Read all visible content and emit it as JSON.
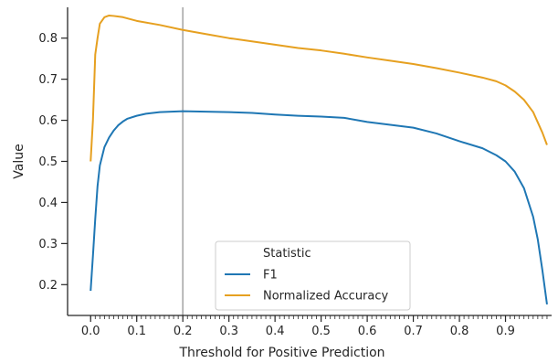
{
  "chart_data": {
    "type": "line",
    "title": "",
    "xlabel": "Threshold for Positive Prediction",
    "ylabel": "Value",
    "xlim": [
      -0.05,
      1.0
    ],
    "ylim": [
      0.125,
      0.875
    ],
    "xticks": [
      0.0,
      0.1,
      0.2,
      0.3,
      0.4,
      0.5,
      0.6,
      0.7,
      0.8,
      0.9
    ],
    "xtick_labels": [
      "0.0",
      "0.1",
      "0.2",
      "0.3",
      "0.4",
      "0.5",
      "0.6",
      "0.7",
      "0.8",
      "0.9"
    ],
    "minor_xtick_step": 0.01,
    "yticks": [
      0.2,
      0.3,
      0.4,
      0.5,
      0.6,
      0.7,
      0.8
    ],
    "ytick_labels": [
      "0.2",
      "0.3",
      "0.4",
      "0.5",
      "0.6",
      "0.7",
      "0.8"
    ],
    "vline": 0.2,
    "grid": false,
    "legend": {
      "title": "Statistic",
      "position": "lower-center"
    },
    "series": [
      {
        "name": "F1",
        "color": "#1f77b4",
        "points": [
          [
            0.0,
            0.185
          ],
          [
            0.005,
            0.27
          ],
          [
            0.01,
            0.36
          ],
          [
            0.015,
            0.44
          ],
          [
            0.02,
            0.49
          ],
          [
            0.03,
            0.535
          ],
          [
            0.04,
            0.558
          ],
          [
            0.05,
            0.575
          ],
          [
            0.06,
            0.588
          ],
          [
            0.07,
            0.597
          ],
          [
            0.08,
            0.604
          ],
          [
            0.1,
            0.611
          ],
          [
            0.12,
            0.616
          ],
          [
            0.15,
            0.62
          ],
          [
            0.2,
            0.622
          ],
          [
            0.25,
            0.621
          ],
          [
            0.3,
            0.62
          ],
          [
            0.35,
            0.618
          ],
          [
            0.4,
            0.614
          ],
          [
            0.45,
            0.611
          ],
          [
            0.5,
            0.609
          ],
          [
            0.55,
            0.606
          ],
          [
            0.6,
            0.596
          ],
          [
            0.65,
            0.589
          ],
          [
            0.7,
            0.582
          ],
          [
            0.75,
            0.568
          ],
          [
            0.8,
            0.549
          ],
          [
            0.85,
            0.532
          ],
          [
            0.88,
            0.515
          ],
          [
            0.9,
            0.5
          ],
          [
            0.92,
            0.475
          ],
          [
            0.94,
            0.435
          ],
          [
            0.96,
            0.365
          ],
          [
            0.97,
            0.31
          ],
          [
            0.98,
            0.235
          ],
          [
            0.99,
            0.152
          ]
        ]
      },
      {
        "name": "Normalized Accuracy",
        "color": "#e6a020",
        "points": [
          [
            0.0,
            0.5
          ],
          [
            0.005,
            0.6
          ],
          [
            0.01,
            0.76
          ],
          [
            0.015,
            0.8
          ],
          [
            0.02,
            0.835
          ],
          [
            0.03,
            0.851
          ],
          [
            0.04,
            0.855
          ],
          [
            0.05,
            0.854
          ],
          [
            0.07,
            0.851
          ],
          [
            0.1,
            0.842
          ],
          [
            0.15,
            0.832
          ],
          [
            0.2,
            0.82
          ],
          [
            0.25,
            0.81
          ],
          [
            0.3,
            0.8
          ],
          [
            0.35,
            0.792
          ],
          [
            0.4,
            0.784
          ],
          [
            0.45,
            0.776
          ],
          [
            0.5,
            0.77
          ],
          [
            0.55,
            0.762
          ],
          [
            0.6,
            0.753
          ],
          [
            0.65,
            0.745
          ],
          [
            0.7,
            0.737
          ],
          [
            0.75,
            0.727
          ],
          [
            0.8,
            0.716
          ],
          [
            0.85,
            0.704
          ],
          [
            0.88,
            0.695
          ],
          [
            0.9,
            0.685
          ],
          [
            0.92,
            0.67
          ],
          [
            0.94,
            0.65
          ],
          [
            0.96,
            0.62
          ],
          [
            0.97,
            0.595
          ],
          [
            0.98,
            0.57
          ],
          [
            0.99,
            0.54
          ]
        ]
      }
    ]
  }
}
